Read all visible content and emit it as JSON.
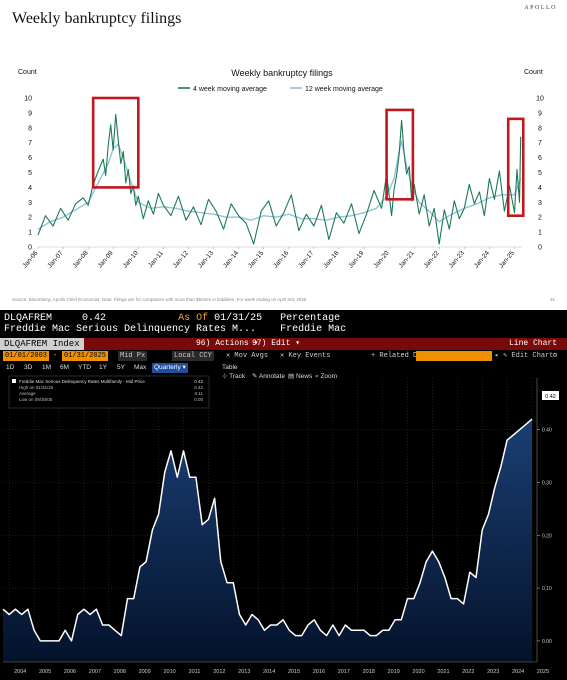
{
  "top_panel": {
    "slide_title": "Weekly bankruptcy filings",
    "brand": "APOLLO",
    "source_note": "Source: Bloomberg, Apollo Chief Economist. Note: Filings are for companies with more than $50mm in liabilities. For week ending on April 3rd, 2025",
    "page_number": "31"
  },
  "bottom_panel": {
    "row1": {
      "ticker": "DLQAFREM",
      "value": "0.42",
      "as_of_label": "As Of",
      "as_of_date": "01/31/25",
      "unit": "Percentage"
    },
    "row2": {
      "description": "Freddie Mac Serious Delinquency Rates M...",
      "source": "Freddie Mac"
    },
    "redbar": {
      "index": "DLQAFREM Index",
      "actions": "96) Actions ▾",
      "edit": "97) Edit ▾",
      "chart_type": "Line Chart"
    },
    "toolbar": {
      "start_date": "01/01/2003",
      "end_date": "01/31/2025",
      "field": "Mid Px",
      "currency": "Local CCY",
      "mov_avgs": "Mov Avgs",
      "key_events": "Key Events",
      "related_data": "+ Related Dat",
      "edit_chart": "Edit Chart"
    },
    "periods": [
      "1D",
      "3D",
      "1M",
      "6M",
      "YTD",
      "1Y",
      "5Y",
      "Max"
    ],
    "frequency": "Quarterly",
    "table_label": "Table",
    "tools": [
      "Track",
      "Annotate",
      "News",
      "Zoom"
    ],
    "legend": {
      "series_label": "Freddie Mac Serious Delinquency Rates Multifamily - Mid Price",
      "series_value": "0.42",
      "high_label": "High on 01/31/25",
      "high_value": "0.42",
      "average_label": "Average",
      "average_value": "0.11",
      "low_label": "Low on 09/30/05",
      "low_value": "0.00"
    },
    "last_value_tag": "0.42"
  },
  "chart_data": [
    {
      "type": "line",
      "title": "Weekly bankruptcy filings",
      "ylabel": "Count",
      "ylabel_right": "Count",
      "ylim": [
        0,
        10
      ],
      "yticks": [
        0,
        1,
        2,
        3,
        4,
        5,
        6,
        7,
        8,
        9,
        10
      ],
      "xlim": [
        2006.0,
        2025.3
      ],
      "x_ticks": [
        "Jan-06",
        "Jan-07",
        "Jan-08",
        "Jan-09",
        "Jan-10",
        "Jan-11",
        "Jan-12",
        "Jan-13",
        "Jan-14",
        "Jan-15",
        "Jan-16",
        "Jan-17",
        "Jan-18",
        "Jan-19",
        "Jan-20",
        "Jan-21",
        "Jan-22",
        "Jan-23",
        "Jan-24",
        "Jan-25"
      ],
      "legend_position": "top",
      "colors": {
        "4wk": "#1e7a56",
        "12wk": "#8ec3dc",
        "highlight": "#c0181e"
      },
      "series": [
        {
          "name": "4 week moving average",
          "x": [
            2006.0,
            2006.3,
            2006.6,
            2006.9,
            2007.2,
            2007.5,
            2007.8,
            2008.0,
            2008.2,
            2008.4,
            2008.6,
            2008.7,
            2008.8,
            2008.9,
            2009.0,
            2009.1,
            2009.2,
            2009.3,
            2009.4,
            2009.5,
            2009.6,
            2009.7,
            2009.8,
            2009.9,
            2010.0,
            2010.2,
            2010.4,
            2010.6,
            2010.8,
            2011.0,
            2011.3,
            2011.6,
            2011.9,
            2012.2,
            2012.5,
            2012.8,
            2013.1,
            2013.4,
            2013.7,
            2014.0,
            2014.3,
            2014.6,
            2014.9,
            2015.2,
            2015.5,
            2015.8,
            2016.1,
            2016.4,
            2016.7,
            2017.0,
            2017.3,
            2017.6,
            2017.9,
            2018.2,
            2018.5,
            2018.8,
            2019.1,
            2019.4,
            2019.7,
            2019.9,
            2020.1,
            2020.2,
            2020.3,
            2020.4,
            2020.5,
            2020.6,
            2020.7,
            2020.8,
            2020.9,
            2021.0,
            2021.2,
            2021.4,
            2021.6,
            2021.8,
            2022.0,
            2022.2,
            2022.4,
            2022.6,
            2022.8,
            2023.0,
            2023.2,
            2023.4,
            2023.6,
            2023.8,
            2024.0,
            2024.2,
            2024.4,
            2024.6,
            2024.8,
            2025.0,
            2025.1,
            2025.2,
            2025.25
          ],
          "values": [
            0.8,
            2.1,
            1.4,
            2.6,
            1.8,
            2.9,
            3.3,
            2.8,
            4.2,
            5.1,
            5.9,
            4.8,
            6.8,
            8.2,
            6.5,
            8.9,
            7.2,
            5.6,
            6.4,
            4.3,
            5.2,
            3.6,
            4.1,
            2.8,
            3.4,
            1.9,
            3.1,
            2.2,
            3.6,
            2.8,
            2.1,
            3.4,
            1.8,
            2.7,
            1.5,
            3.2,
            2.4,
            1.2,
            2.9,
            2.1,
            1.6,
            0.2,
            2.4,
            3.1,
            1.4,
            2.3,
            3.5,
            1.1,
            2.2,
            1.4,
            2.8,
            0.5,
            2.3,
            1.6,
            2.9,
            0.9,
            2.2,
            3.8,
            2.6,
            4.9,
            2.1,
            3.9,
            4.8,
            6.2,
            8.5,
            6.3,
            4.9,
            5.4,
            3.1,
            4.2,
            2.2,
            3.5,
            1.4,
            2.6,
            0.2,
            2.5,
            1.2,
            3.1,
            1.9,
            2.6,
            4.2,
            2.9,
            3.7,
            2.1,
            4.6,
            3.2,
            5.1,
            2.4,
            4.1,
            2.3,
            5.2,
            3.0,
            7.4
          ]
        },
        {
          "name": "12 week moving average",
          "x": [
            2006.0,
            2006.5,
            2007.0,
            2007.5,
            2008.0,
            2008.4,
            2008.8,
            2009.0,
            2009.2,
            2009.4,
            2009.6,
            2009.8,
            2010.0,
            2010.5,
            2011.0,
            2011.5,
            2012.0,
            2012.5,
            2013.0,
            2013.5,
            2014.0,
            2014.5,
            2015.0,
            2015.5,
            2016.0,
            2016.5,
            2017.0,
            2017.5,
            2018.0,
            2018.5,
            2019.0,
            2019.5,
            2019.9,
            2020.2,
            2020.4,
            2020.5,
            2020.7,
            2020.9,
            2021.2,
            2021.6,
            2022.0,
            2022.5,
            2023.0,
            2023.5,
            2024.0,
            2024.5,
            2025.0,
            2025.25
          ],
          "values": [
            1.2,
            1.7,
            2.0,
            2.5,
            3.0,
            4.3,
            5.6,
            6.6,
            6.9,
            6.0,
            4.9,
            3.9,
            3.0,
            2.6,
            2.7,
            2.6,
            2.4,
            2.3,
            2.2,
            2.0,
            2.0,
            1.8,
            2.1,
            2.0,
            2.2,
            1.9,
            1.9,
            1.8,
            2.0,
            2.1,
            2.3,
            2.6,
            3.4,
            4.6,
            6.4,
            7.1,
            5.4,
            4.1,
            3.0,
            2.4,
            1.7,
            2.2,
            2.6,
            2.9,
            3.3,
            3.5,
            3.5,
            4.6
          ]
        }
      ],
      "highlights": [
        {
          "x": [
            2008.2,
            2010.0
          ],
          "y": [
            4.0,
            10.0
          ]
        },
        {
          "x": [
            2019.9,
            2020.95
          ],
          "y": [
            3.2,
            9.2
          ]
        },
        {
          "x": [
            2024.75,
            2025.35
          ],
          "y": [
            2.1,
            8.6
          ]
        }
      ]
    },
    {
      "type": "area",
      "title": "Freddie Mac Serious Delinquency Rates Multifamily - Mid Price",
      "ylabel": "Percentage",
      "ylim": [
        -0.04,
        0.46
      ],
      "yticks": [
        0.0,
        0.1,
        0.2,
        0.3,
        0.4
      ],
      "xlim": [
        2003.75,
        2025.2
      ],
      "x_ticks": [
        "2004",
        "2005",
        "2006",
        "2007",
        "2008",
        "2009",
        "2010",
        "2011",
        "2012",
        "2013",
        "2014",
        "2015",
        "2016",
        "2017",
        "2018",
        "2019",
        "2020",
        "2021",
        "2022",
        "2023",
        "2024",
        "2025"
      ],
      "grid": true,
      "colors": {
        "line": "#ffffff",
        "fill_top": "#1b3f73",
        "fill_bottom": "#04122b"
      },
      "series": [
        {
          "name": "Freddie Mac Serious Delinquency Rates Multifamily - Mid Price",
          "x": [
            2003.75,
            2004.0,
            2004.25,
            2004.5,
            2004.75,
            2005.0,
            2005.25,
            2005.5,
            2005.75,
            2006.0,
            2006.25,
            2006.5,
            2006.75,
            2007.0,
            2007.25,
            2007.5,
            2007.75,
            2008.0,
            2008.25,
            2008.5,
            2008.75,
            2009.0,
            2009.25,
            2009.5,
            2009.75,
            2010.0,
            2010.25,
            2010.5,
            2010.75,
            2011.0,
            2011.25,
            2011.5,
            2011.75,
            2012.0,
            2012.25,
            2012.5,
            2012.75,
            2013.0,
            2013.25,
            2013.5,
            2013.75,
            2014.0,
            2014.25,
            2014.5,
            2014.75,
            2015.0,
            2015.25,
            2015.5,
            2015.75,
            2016.0,
            2016.25,
            2016.5,
            2016.75,
            2017.0,
            2017.25,
            2017.5,
            2017.75,
            2018.0,
            2018.25,
            2018.5,
            2018.75,
            2019.0,
            2019.25,
            2019.5,
            2019.75,
            2020.0,
            2020.25,
            2020.5,
            2020.75,
            2021.0,
            2021.25,
            2021.5,
            2021.75,
            2022.0,
            2022.25,
            2022.5,
            2022.75,
            2023.0,
            2023.25,
            2023.5,
            2023.75,
            2024.0,
            2024.25,
            2024.5,
            2024.75,
            2025.0
          ],
          "values": [
            0.06,
            0.05,
            0.06,
            0.05,
            0.06,
            0.02,
            0.0,
            0.0,
            0.0,
            0.0,
            0.02,
            0.0,
            0.05,
            0.06,
            0.05,
            0.06,
            0.03,
            0.03,
            0.02,
            0.01,
            0.08,
            0.08,
            0.14,
            0.15,
            0.21,
            0.24,
            0.32,
            0.36,
            0.31,
            0.36,
            0.31,
            0.31,
            0.22,
            0.23,
            0.27,
            0.15,
            0.11,
            0.11,
            0.05,
            0.03,
            0.05,
            0.04,
            0.02,
            0.03,
            0.03,
            0.04,
            0.02,
            0.01,
            0.01,
            0.03,
            0.04,
            0.02,
            0.01,
            0.03,
            0.01,
            0.03,
            0.02,
            0.02,
            0.02,
            0.01,
            0.01,
            0.02,
            0.02,
            0.04,
            0.04,
            0.08,
            0.08,
            0.11,
            0.15,
            0.17,
            0.15,
            0.12,
            0.08,
            0.08,
            0.07,
            0.13,
            0.12,
            0.21,
            0.24,
            0.29,
            0.33,
            0.38,
            0.39,
            0.4,
            0.41,
            0.42
          ]
        }
      ]
    }
  ]
}
